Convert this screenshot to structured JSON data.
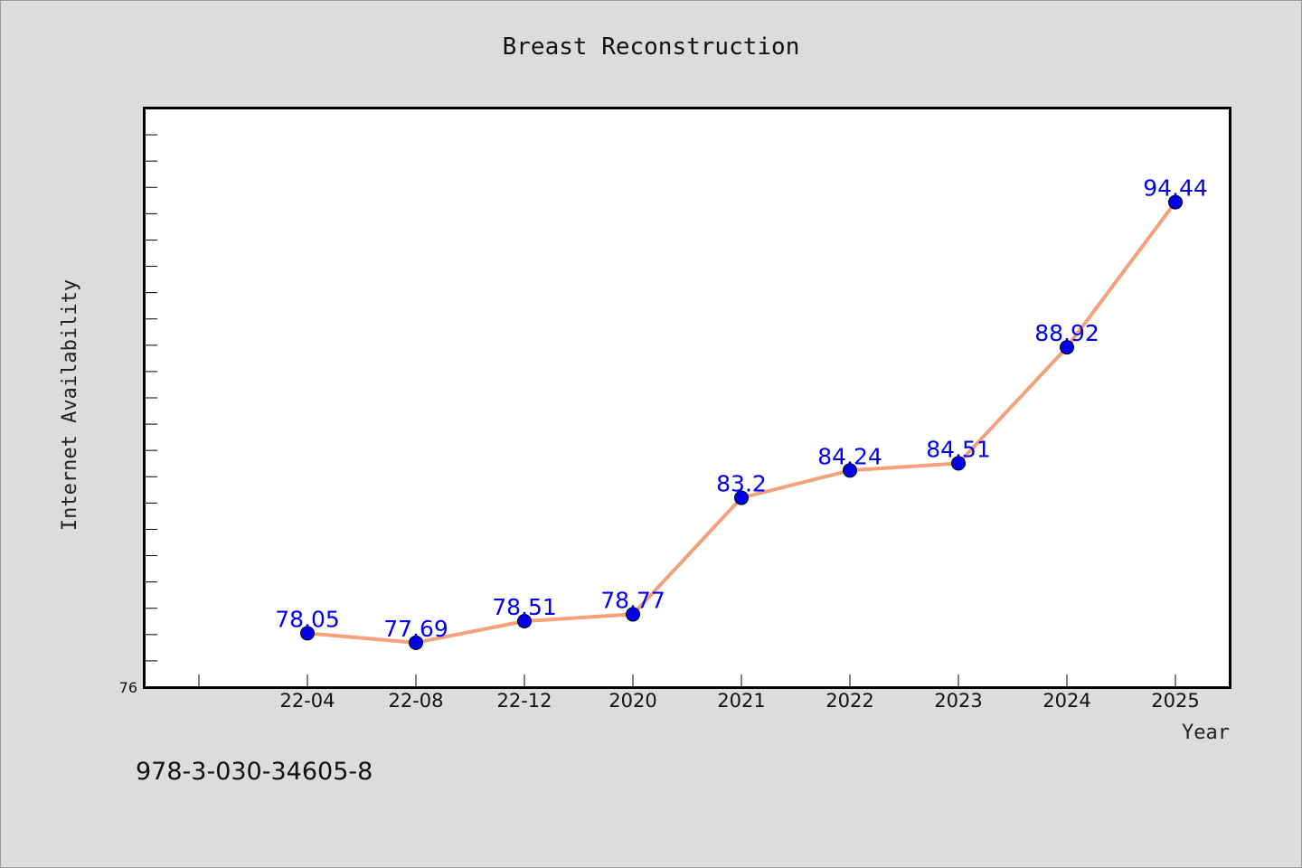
{
  "footer": {
    "isbn": "978-3-030-34605-8"
  },
  "colors": {
    "line": "#f4a07a",
    "marker": "#0000ee",
    "label": "#0000ee",
    "background": "#dcdcdc",
    "plot_bg": "#ffffff"
  },
  "chart_data": {
    "type": "line",
    "title": "Breast Reconstruction",
    "xlabel": "Year",
    "ylabel": "Internet Availability",
    "categories": [
      "22-04",
      "22-08",
      "22-12",
      "2020",
      "2021",
      "2022",
      "2023",
      "2024",
      "2025"
    ],
    "series": [
      {
        "values": [
          78.05,
          77.69,
          78.51,
          78.77,
          83.2,
          84.24,
          84.51,
          88.92,
          94.44
        ]
      }
    ],
    "value_labels": [
      "78.05",
      "77.69",
      "78.51",
      "78.77",
      "83.2",
      "84.24",
      "84.51",
      "88.92",
      "94.44"
    ],
    "ylim": [
      76,
      98
    ],
    "ytick_labels": [
      "76"
    ],
    "grid": false,
    "legend": "none"
  }
}
